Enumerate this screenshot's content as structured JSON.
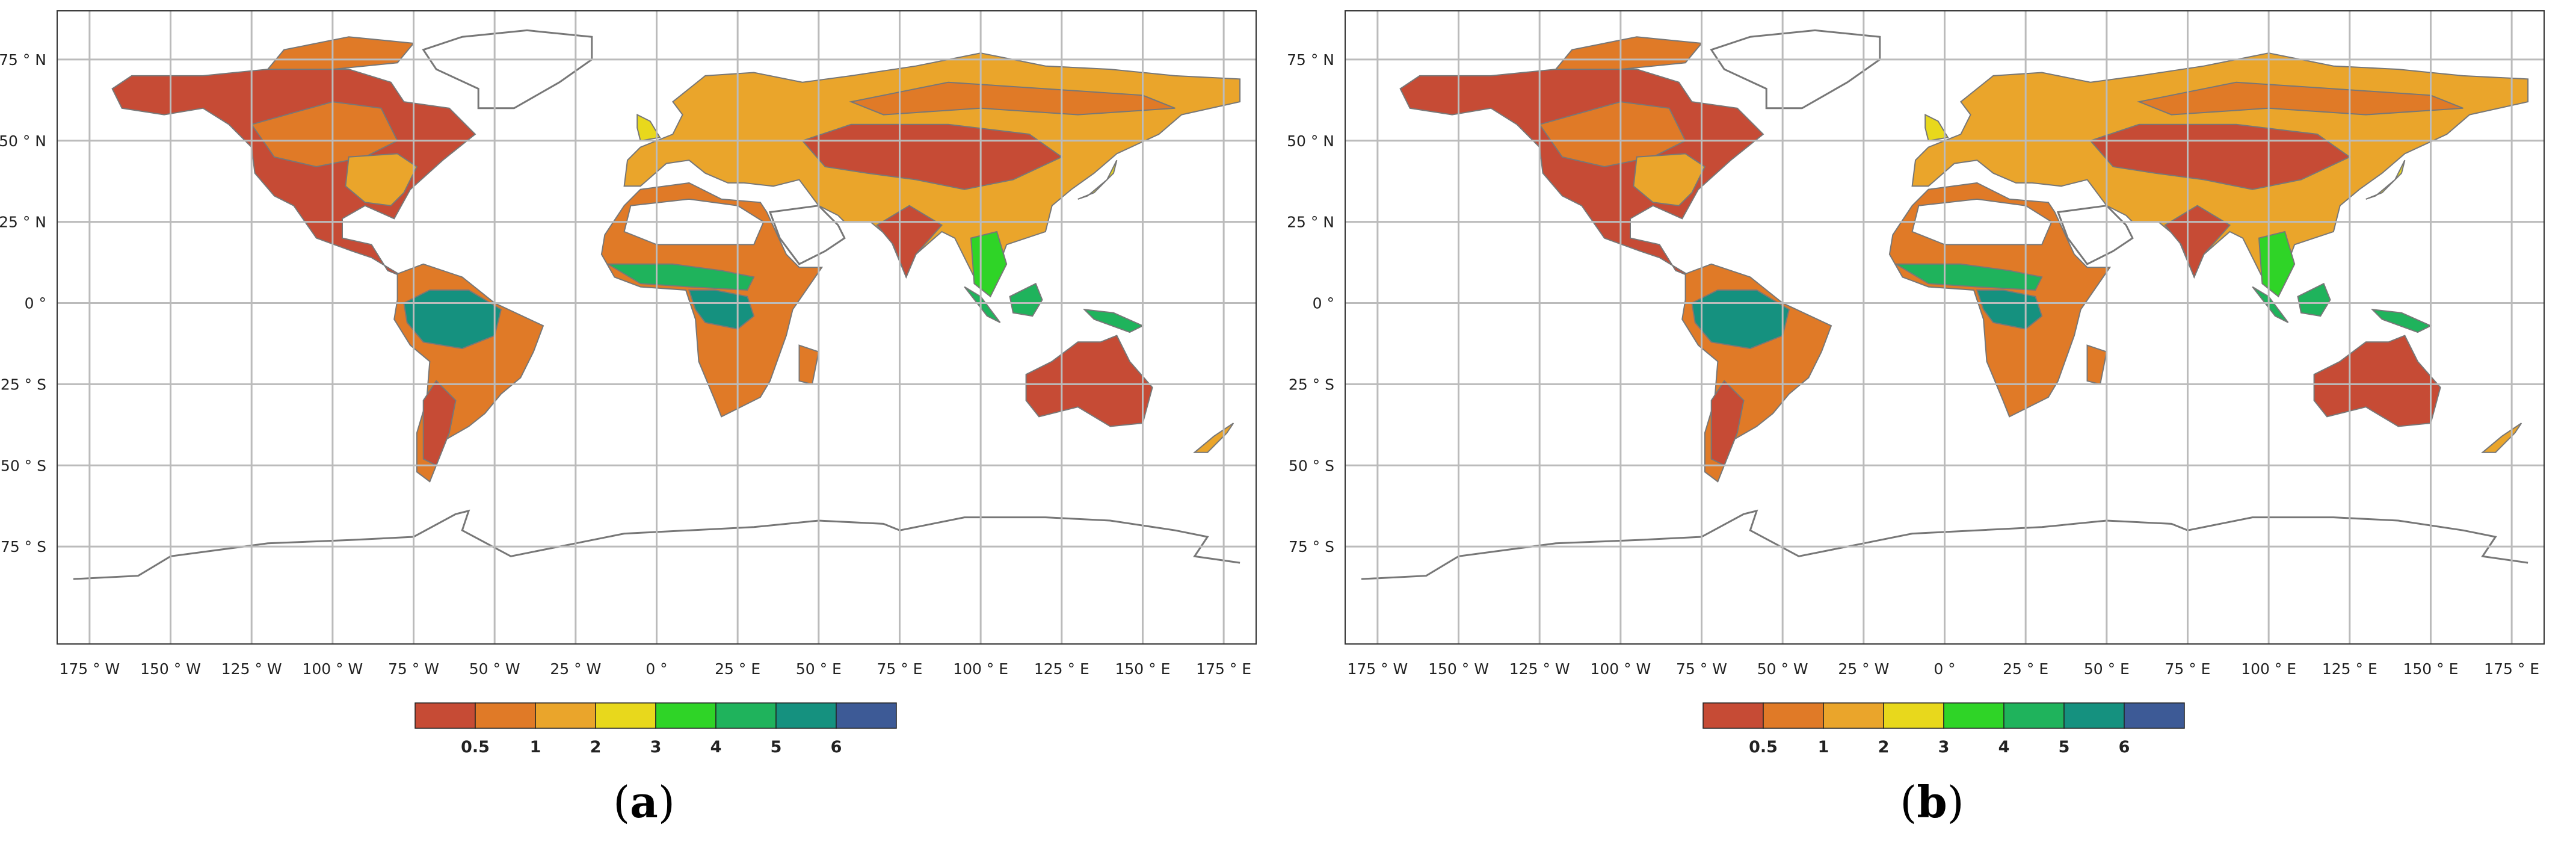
{
  "panels": [
    {
      "label": "a"
    },
    {
      "label": "b"
    }
  ],
  "axes": {
    "lat_labels": [
      "75 ° N",
      "50 ° N",
      "25 ° N",
      "0 °",
      "25 ° S",
      "50 ° S",
      "75 ° S"
    ],
    "lon_labels": [
      "175 ° W",
      "150 ° W",
      "125 ° W",
      "100 ° W",
      "75 ° W",
      "50 ° W",
      "25 ° W",
      "0 °",
      "25 ° E",
      "50 ° E",
      "75 ° E",
      "100 ° E",
      "125 ° E",
      "150 ° E",
      "175 ° E"
    ],
    "grid": true
  },
  "colorbar": {
    "colors": [
      "#c64b35",
      "#e07a27",
      "#eaa52b",
      "#e8d81c",
      "#2fd427",
      "#1fb35c",
      "#15917f",
      "#3d5a96"
    ],
    "tick_labels": [
      "0.5",
      "1",
      "2",
      "3",
      "4",
      "5",
      "6"
    ]
  },
  "map_colors": {
    "coast": "#777777",
    "grid": "#bbbbbb",
    "frame": "#333333",
    "ocean": "#ffffff"
  }
}
